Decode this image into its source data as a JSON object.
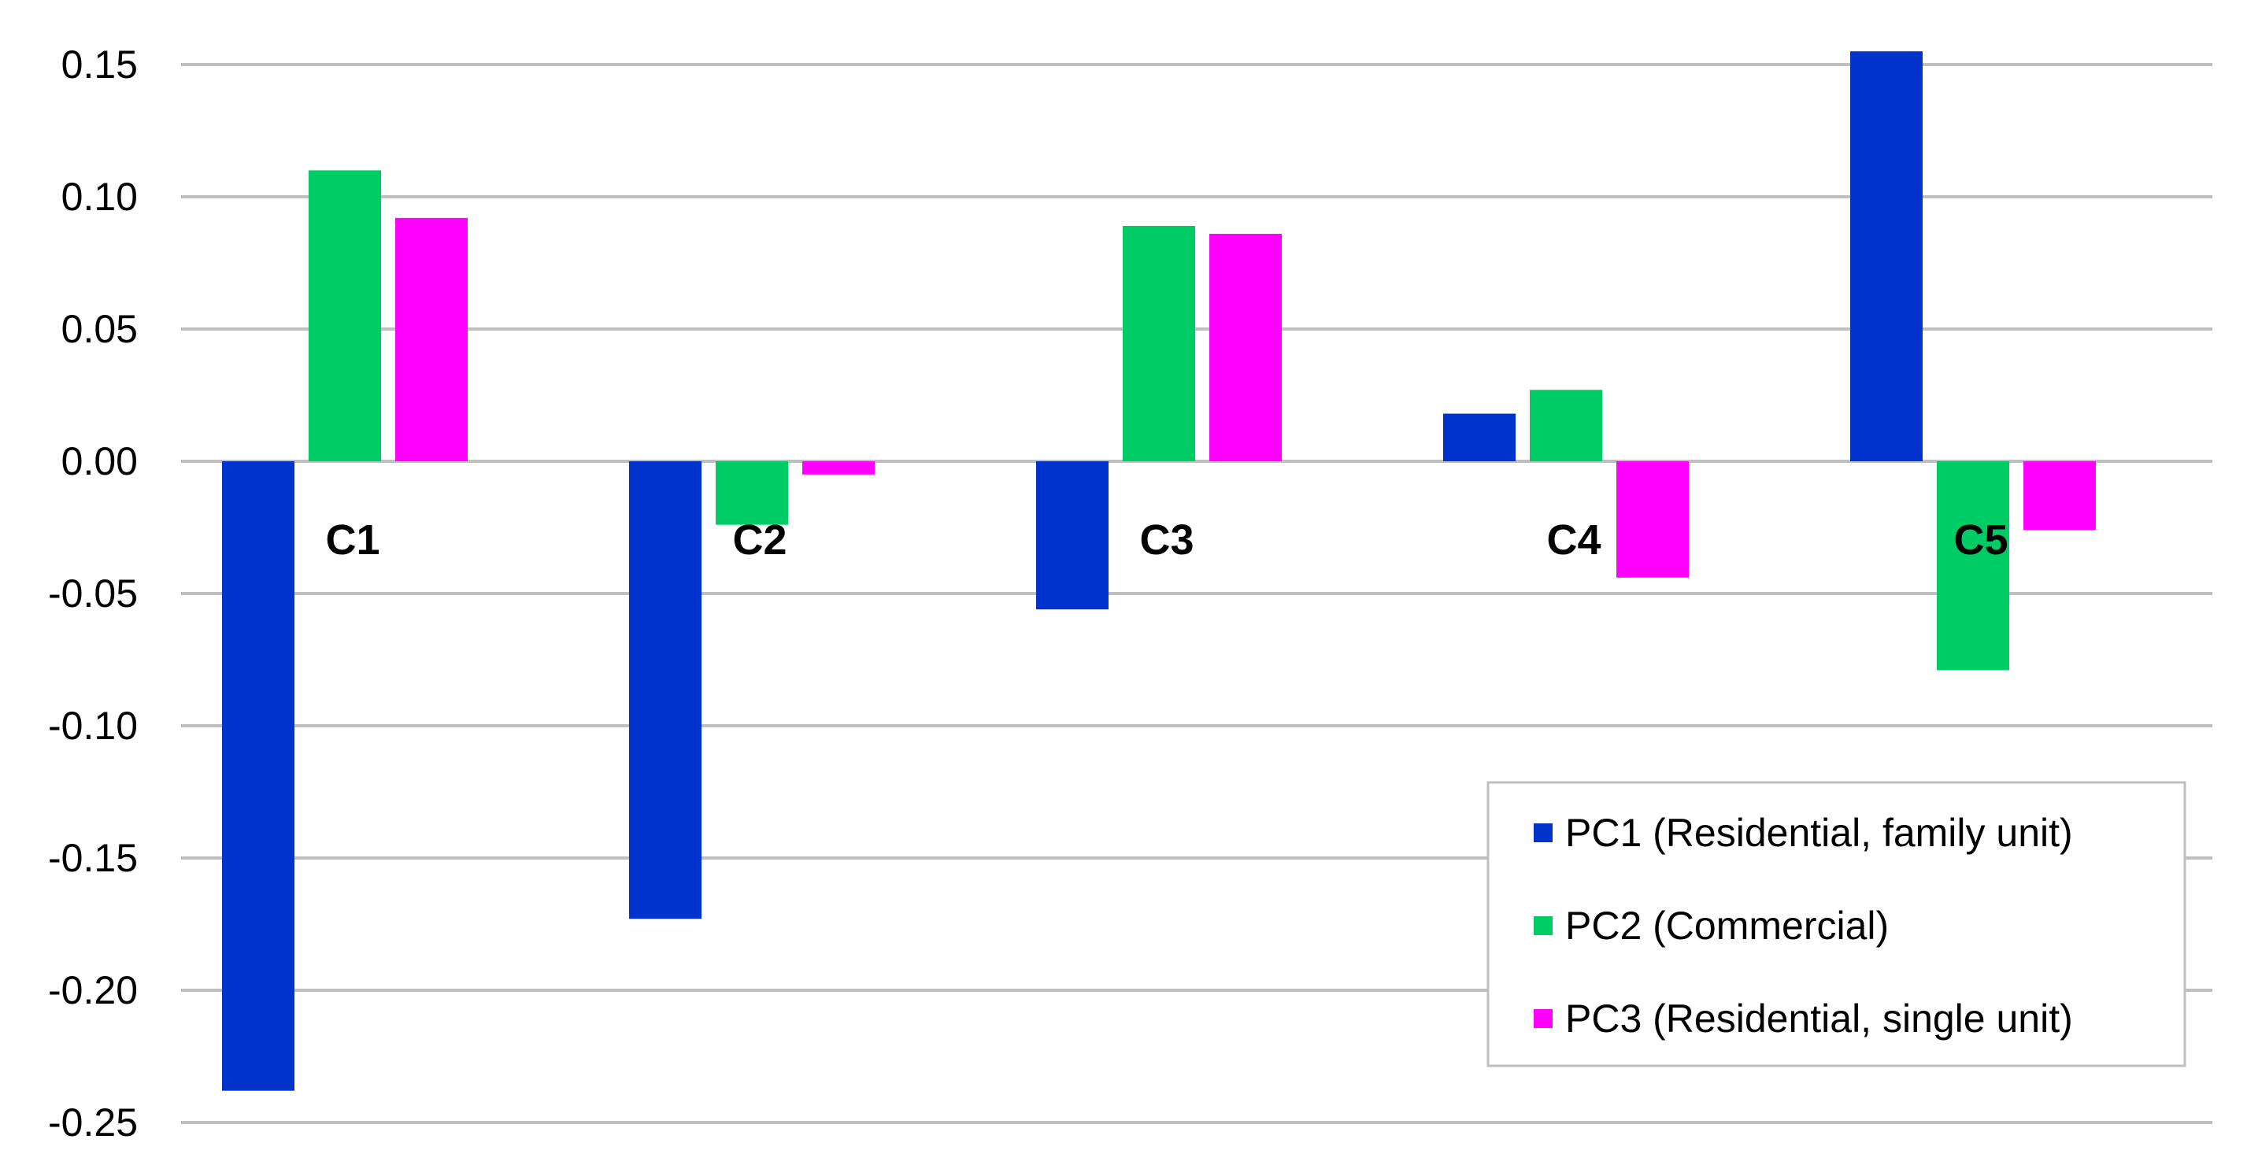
{
  "chart_data": {
    "type": "bar",
    "title": "",
    "xlabel": "",
    "ylabel": "",
    "categories": [
      "C1",
      "C2",
      "C3",
      "C4",
      "C5"
    ],
    "series": [
      {
        "name": "PC1 (Residential, family unit)",
        "color": "#0033cc",
        "values": [
          -0.238,
          -0.173,
          -0.056,
          0.018,
          0.155
        ]
      },
      {
        "name": "PC2 (Commercial)",
        "color": "#00cc66",
        "values": [
          0.11,
          -0.024,
          0.089,
          0.027,
          -0.079
        ]
      },
      {
        "name": "PC3 (Residential, single unit)",
        "color": "#ff00ff",
        "values": [
          0.092,
          -0.005,
          0.086,
          -0.044,
          -0.026
        ]
      }
    ],
    "ylim": [
      -0.25,
      0.15
    ],
    "yticks": [
      "0.15",
      "0.10",
      "0.05",
      "0.00",
      "-0.05",
      "-0.10",
      "-0.15",
      "-0.20",
      "-0.25"
    ],
    "grid": "horizontal",
    "legend_position": "bottom-right",
    "category_labels_position": "below zero line"
  }
}
